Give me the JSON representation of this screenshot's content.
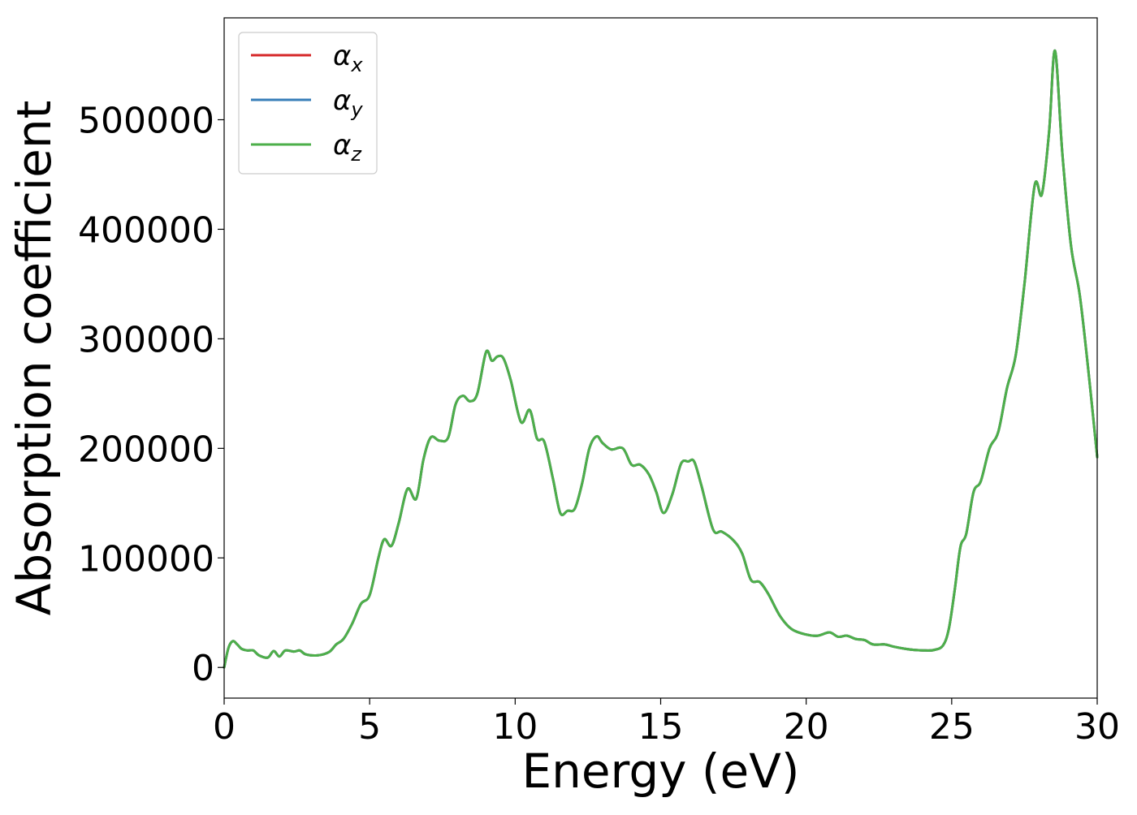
{
  "chart_data": {
    "type": "line",
    "title": "",
    "xlabel": "Energy (eV)",
    "ylabel": "Absorption coefficient",
    "xlim": [
      0,
      30
    ],
    "ylim": [
      -28000,
      593000
    ],
    "xticks": [
      0,
      5,
      10,
      15,
      20,
      25,
      30
    ],
    "yticks": [
      0,
      100000,
      200000,
      300000,
      400000,
      500000
    ],
    "grid": false,
    "legend_position": "upper-left",
    "x": [
      0,
      0.15,
      0.3,
      0.45,
      0.6,
      0.8,
      1.0,
      1.2,
      1.5,
      1.7,
      1.9,
      2.1,
      2.4,
      2.6,
      2.8,
      3.2,
      3.6,
      3.85,
      4.1,
      4.4,
      4.7,
      5.0,
      5.3,
      5.5,
      5.75,
      6.0,
      6.3,
      6.6,
      6.85,
      7.1,
      7.4,
      7.7,
      7.95,
      8.2,
      8.45,
      8.7,
      9.0,
      9.2,
      9.4,
      9.6,
      9.85,
      10.2,
      10.5,
      10.75,
      11.0,
      11.3,
      11.55,
      11.8,
      12.05,
      12.3,
      12.55,
      12.8,
      13.0,
      13.3,
      13.7,
      14.0,
      14.3,
      14.6,
      14.85,
      15.1,
      15.4,
      15.7,
      15.95,
      16.15,
      16.4,
      16.8,
      17.1,
      17.5,
      17.8,
      18.1,
      18.4,
      18.7,
      19.1,
      19.5,
      20.0,
      20.4,
      20.8,
      21.1,
      21.4,
      21.7,
      22.0,
      22.3,
      22.7,
      23.0,
      23.4,
      23.7,
      24.1,
      24.4,
      24.7,
      24.9,
      25.1,
      25.3,
      25.5,
      25.75,
      26.0,
      26.3,
      26.6,
      26.9,
      27.2,
      27.5,
      27.85,
      28.1,
      28.35,
      28.55,
      28.8,
      29.1,
      29.4,
      29.7,
      30.0
    ],
    "series": [
      {
        "name": "αx",
        "color": "#d62728",
        "values": [
          0,
          18000,
          24000,
          21000,
          17000,
          15500,
          15500,
          11000,
          9000,
          15000,
          10000,
          15500,
          14500,
          15500,
          12000,
          11000,
          14000,
          21000,
          26000,
          40000,
          58000,
          66000,
          100000,
          117000,
          111000,
          132000,
          163000,
          154000,
          190000,
          210000,
          207000,
          210000,
          240000,
          248000,
          243000,
          250000,
          288000,
          280000,
          284000,
          282000,
          262000,
          224000,
          235000,
          209000,
          206000,
          172000,
          141000,
          143000,
          145000,
          168000,
          200000,
          211000,
          205000,
          199000,
          200000,
          185000,
          185000,
          176000,
          160000,
          141000,
          158000,
          186000,
          188000,
          188000,
          166000,
          126000,
          124000,
          116000,
          104000,
          80000,
          78000,
          67000,
          47000,
          35000,
          30000,
          29000,
          32000,
          28000,
          29000,
          26000,
          25000,
          21000,
          21000,
          19000,
          17000,
          16000,
          15500,
          16000,
          20000,
          35000,
          70000,
          110000,
          122000,
          160000,
          170000,
          200000,
          215000,
          255000,
          285000,
          350000,
          440000,
          432000,
          490000,
          563000,
          470000,
          385000,
          340000,
          270000,
          192000
        ]
      },
      {
        "name": "αy",
        "color": "#377eb8",
        "values": [
          0,
          18000,
          24000,
          21000,
          17000,
          15500,
          15500,
          11000,
          9000,
          15000,
          10000,
          15500,
          14500,
          15500,
          12000,
          11000,
          14000,
          21000,
          26000,
          40000,
          58000,
          66000,
          100000,
          117000,
          111000,
          132000,
          163000,
          154000,
          190000,
          210000,
          207000,
          210000,
          240000,
          248000,
          243000,
          250000,
          288000,
          280000,
          284000,
          282000,
          262000,
          224000,
          235000,
          209000,
          206000,
          172000,
          141000,
          143000,
          145000,
          168000,
          200000,
          211000,
          205000,
          199000,
          200000,
          185000,
          185000,
          176000,
          160000,
          141000,
          158000,
          186000,
          188000,
          188000,
          166000,
          126000,
          124000,
          116000,
          104000,
          80000,
          78000,
          67000,
          47000,
          35000,
          30000,
          29000,
          32000,
          28000,
          29000,
          26000,
          25000,
          21000,
          21000,
          19000,
          17000,
          16000,
          15500,
          16000,
          20000,
          35000,
          70000,
          110000,
          122000,
          160000,
          170000,
          200000,
          215000,
          255000,
          285000,
          350000,
          440000,
          432000,
          490000,
          563000,
          470000,
          385000,
          340000,
          270000,
          192000
        ]
      },
      {
        "name": "αz",
        "color": "#4daf4a",
        "values": [
          0,
          18000,
          24000,
          21000,
          17000,
          15500,
          15500,
          11000,
          9000,
          15000,
          10000,
          15500,
          14500,
          15500,
          12000,
          11000,
          14000,
          21000,
          26000,
          40000,
          58000,
          66000,
          100000,
          117000,
          111000,
          132000,
          163000,
          154000,
          190000,
          210000,
          207000,
          210000,
          240000,
          248000,
          243000,
          250000,
          288000,
          280000,
          284000,
          282000,
          262000,
          224000,
          235000,
          209000,
          206000,
          172000,
          141000,
          143000,
          145000,
          168000,
          200000,
          211000,
          205000,
          199000,
          200000,
          185000,
          185000,
          176000,
          160000,
          141000,
          158000,
          186000,
          188000,
          188000,
          166000,
          126000,
          124000,
          116000,
          104000,
          80000,
          78000,
          67000,
          47000,
          35000,
          30000,
          29000,
          32000,
          28000,
          29000,
          26000,
          25000,
          21000,
          21000,
          19000,
          17000,
          16000,
          15500,
          16000,
          20000,
          35000,
          70000,
          110000,
          122000,
          160000,
          170000,
          200000,
          215000,
          255000,
          285000,
          350000,
          440000,
          432000,
          490000,
          563000,
          470000,
          385000,
          340000,
          270000,
          192000
        ]
      }
    ],
    "legend": [
      {
        "symbol": "α",
        "subscript": "x",
        "color": "#d62728"
      },
      {
        "symbol": "α",
        "subscript": "y",
        "color": "#377eb8"
      },
      {
        "symbol": "α",
        "subscript": "z",
        "color": "#4daf4a"
      }
    ]
  }
}
